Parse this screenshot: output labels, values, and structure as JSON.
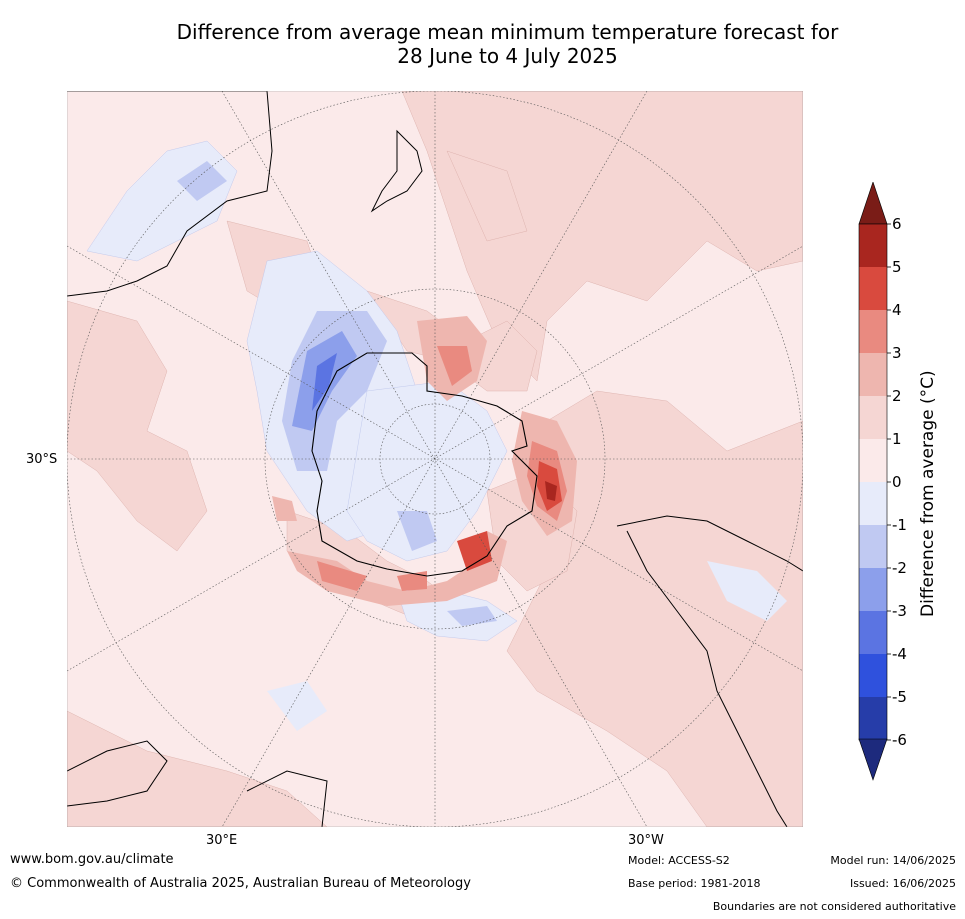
{
  "title": {
    "line1": "Difference from average mean minimum temperature forecast for",
    "line2": "28 June to 4 July 2025"
  },
  "map": {
    "projection": "south-polar-stereographic",
    "axis_labels": {
      "left": "30°S",
      "bottom_left": "30°E",
      "bottom_right": "30°W"
    }
  },
  "colorbar": {
    "title": "Difference from average (°C)",
    "ticks": [
      "6",
      "5",
      "4",
      "3",
      "2",
      "1",
      "0",
      "-1",
      "-2",
      "-3",
      "-4",
      "-5",
      "-6"
    ],
    "colors": [
      "#a9261f",
      "#d94a3e",
      "#e98a80",
      "#eeb6af",
      "#f5d6d3",
      "#fbeaea",
      "#e7ebfa",
      "#c0c9f2",
      "#8c9feb",
      "#5b74e2",
      "#2f51dd",
      "#263da9"
    ],
    "over_color": "#7a1c17",
    "under_color": "#1d2a7d"
  },
  "footer": {
    "url": "www.bom.gov.au/climate",
    "copyright": "© Commonwealth of Australia 2025, Australian Bureau of Meteorology",
    "model": "Model: ACCESS-S2",
    "base_period": "Base period: 1981-2018",
    "model_run": "Model run: 14/06/2025",
    "issued": "Issued: 16/06/2025",
    "disclaimer": "Boundaries are not considered authoritative"
  }
}
